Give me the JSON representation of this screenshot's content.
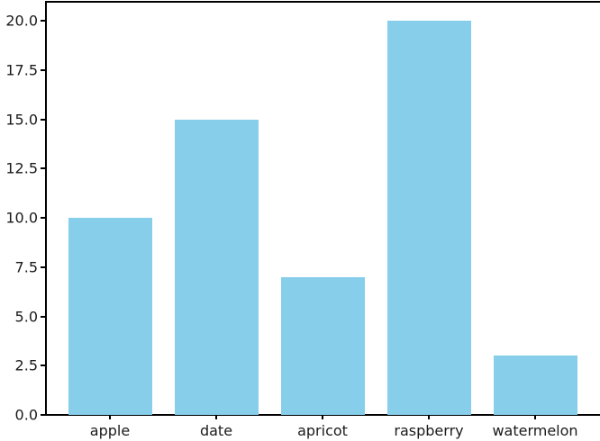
{
  "chart_data": {
    "type": "bar",
    "categories": [
      "apple",
      "date",
      "apricot",
      "raspberry",
      "watermelon"
    ],
    "values": [
      10,
      15,
      7,
      20,
      3
    ],
    "title": "",
    "xlabel": "",
    "ylabel": "",
    "ylim": [
      0,
      21
    ],
    "yticks": [
      {
        "value": 0,
        "label": "0.0"
      },
      {
        "value": 2.5,
        "label": "2.5"
      },
      {
        "value": 5,
        "label": "5.0"
      },
      {
        "value": 7.5,
        "label": "7.5"
      },
      {
        "value": 10,
        "label": "10.0"
      },
      {
        "value": 12.5,
        "label": "12.5"
      },
      {
        "value": 15,
        "label": "15.0"
      },
      {
        "value": 17.5,
        "label": "17.5"
      },
      {
        "value": 20,
        "label": "20.0"
      }
    ],
    "grid": false,
    "legend": null,
    "bar_color": "#87CEEB",
    "axis_color": "#000000",
    "text_color": "#1a1a1a"
  }
}
